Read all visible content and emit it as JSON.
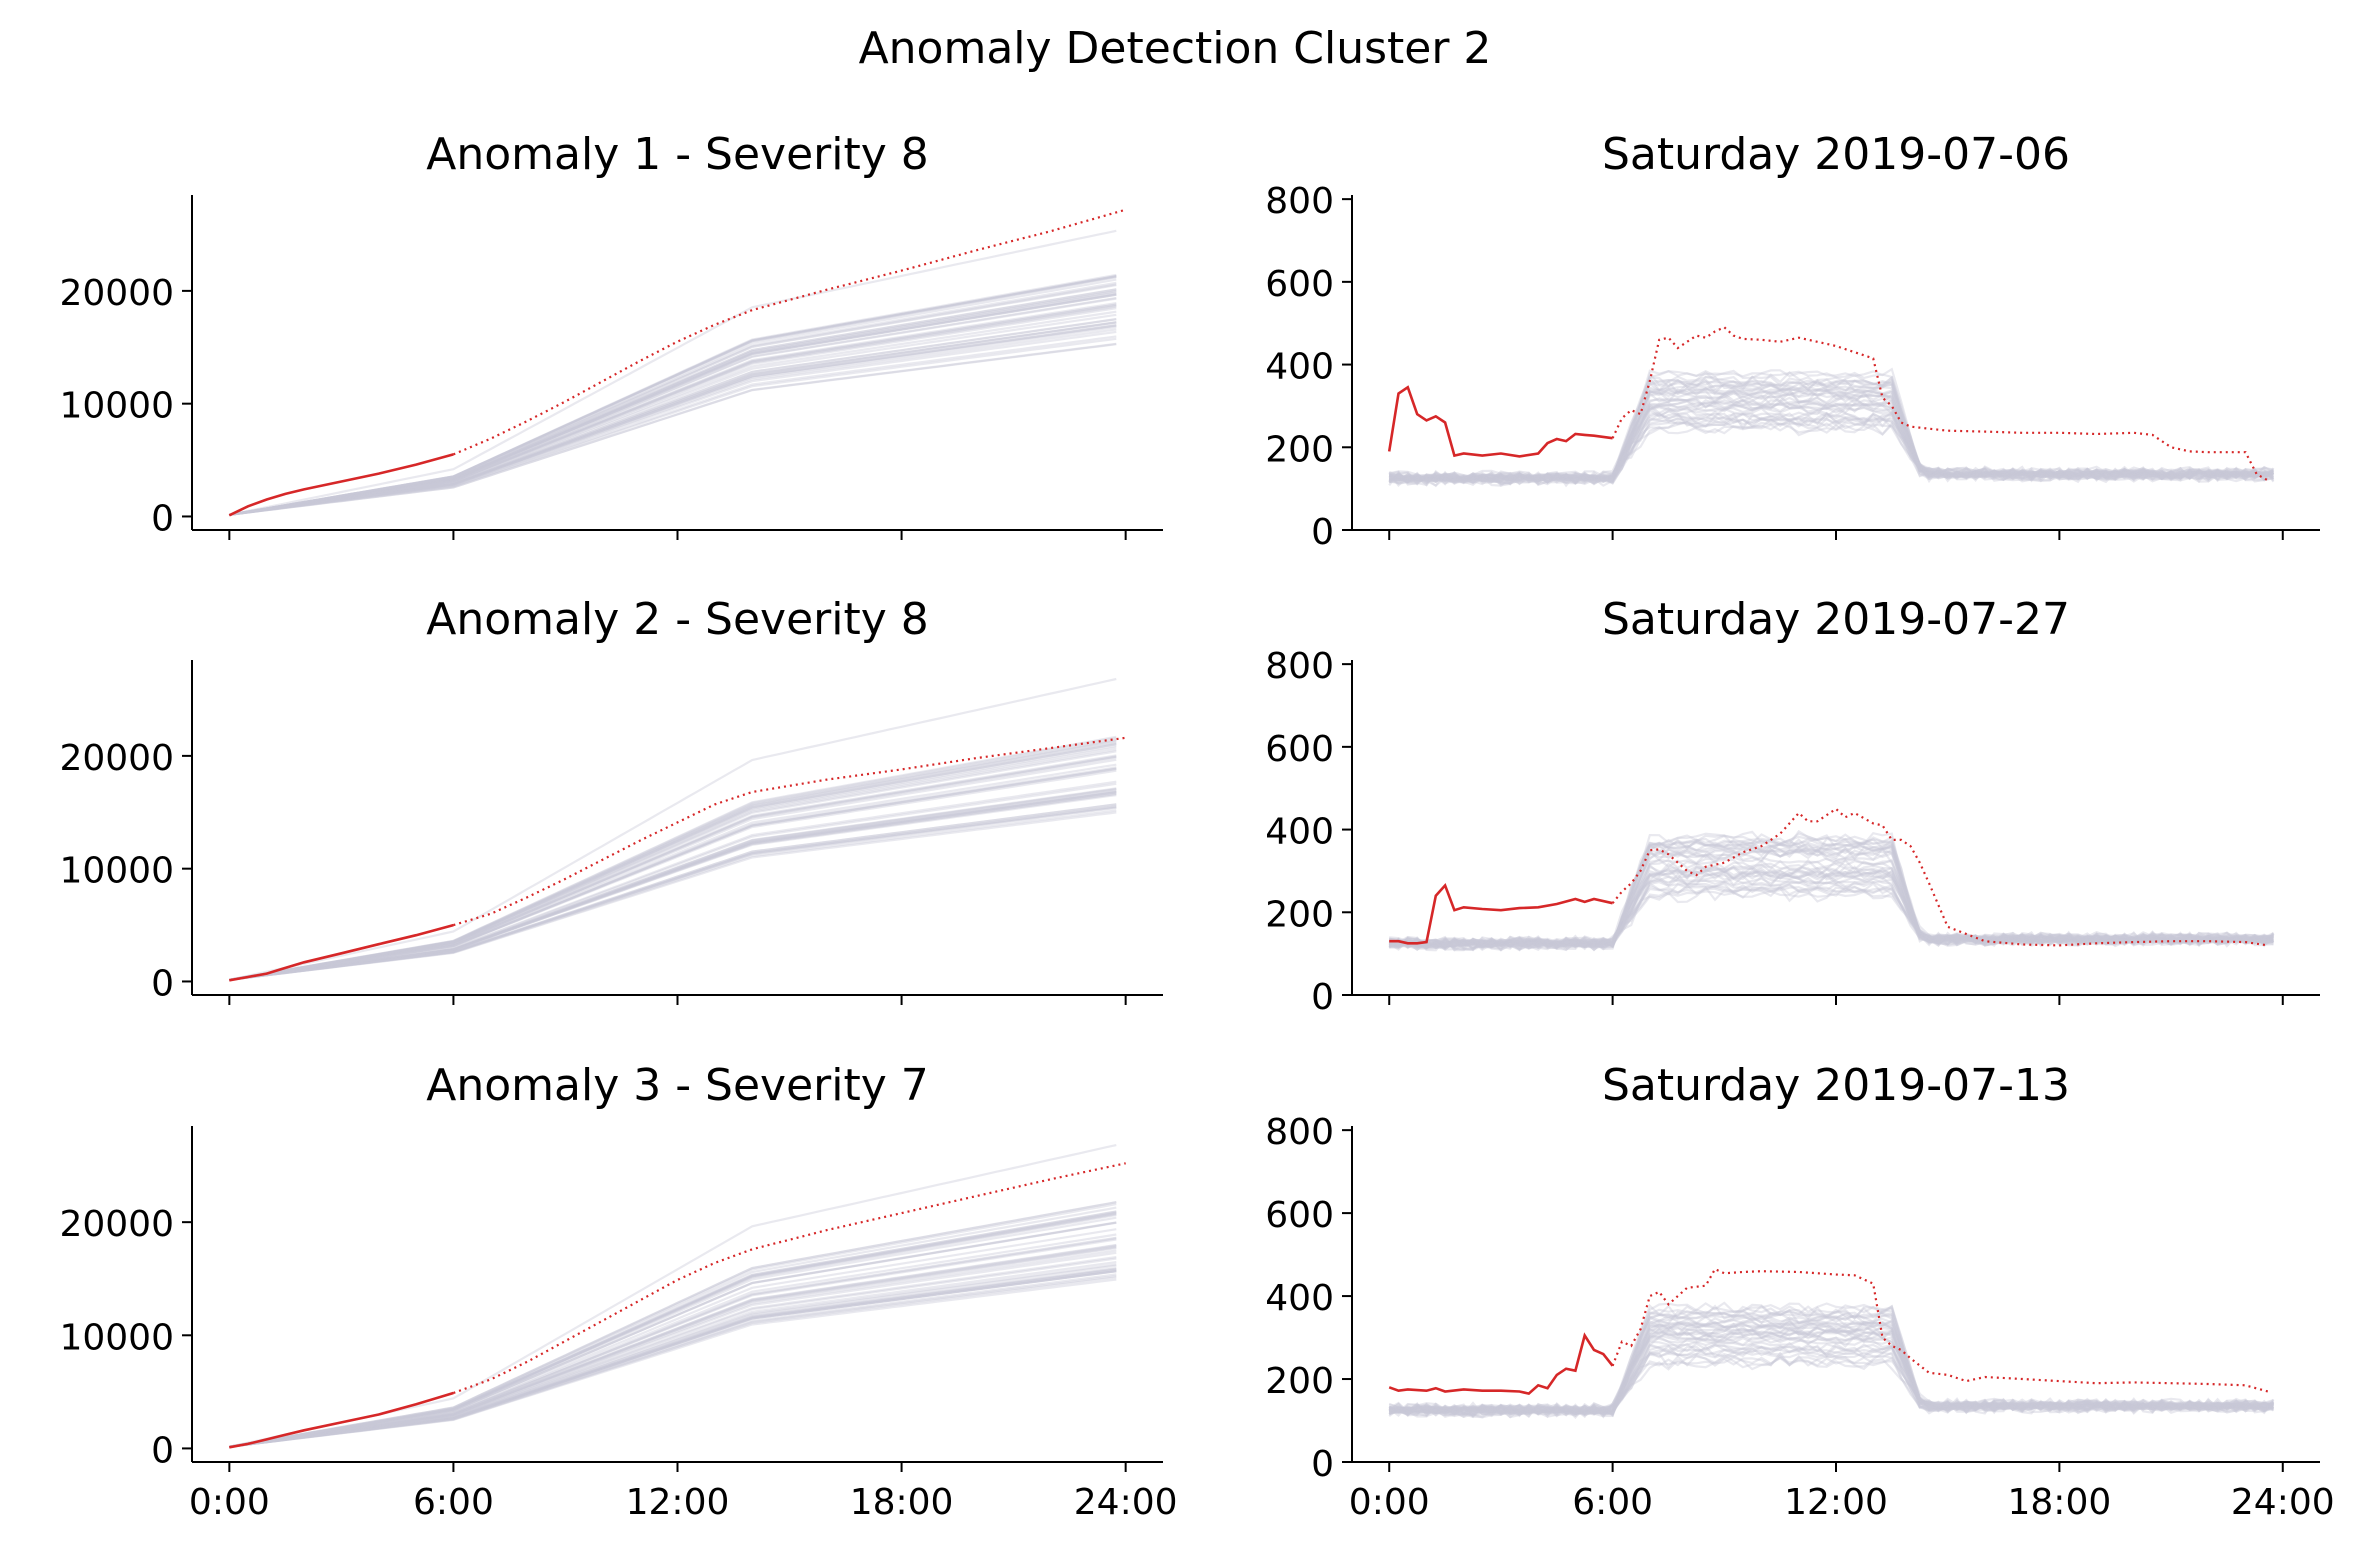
{
  "figure": {
    "title": "Anomaly Detection Cluster 2"
  },
  "colors": {
    "anomaly": "#d62728",
    "background_days": "#c9c9d6"
  },
  "chart_data": [
    {
      "type": "line",
      "panel": "cumulative-1",
      "title": "Anomaly 1 - Severity 8",
      "xlabel": "",
      "ylabel": "",
      "xlim": [
        -1,
        25
      ],
      "ylim": [
        -1200,
        28500
      ],
      "xticks": [
        "0:00",
        "6:00",
        "12:00",
        "18:00",
        "24:00"
      ],
      "yticks": [
        0,
        10000,
        20000
      ],
      "background_envelope": {
        "low_end": 15000,
        "high_end": 22000,
        "outlier_end": 25500
      },
      "anomaly": {
        "solid": {
          "x": [
            0,
            0.5,
            1,
            1.5,
            2,
            3,
            4,
            5,
            6
          ],
          "y": [
            100,
            900,
            1500,
            2000,
            2400,
            3100,
            3800,
            4600,
            5500
          ]
        },
        "dotted": {
          "x": [
            6,
            7,
            8,
            9,
            10,
            11,
            12,
            13,
            14,
            16,
            18,
            20,
            22,
            24
          ],
          "y": [
            5500,
            6900,
            8500,
            10200,
            12000,
            13800,
            15500,
            17000,
            18300,
            20100,
            21800,
            23600,
            25300,
            27200
          ]
        }
      }
    },
    {
      "type": "line",
      "panel": "daily-1",
      "title": "Saturday 2019-07-06",
      "xlabel": "",
      "ylabel": "",
      "xlim": [
        -1,
        25
      ],
      "ylim": [
        0,
        810
      ],
      "xticks": [
        "0:00",
        "6:00",
        "12:00",
        "18:00",
        "24:00"
      ],
      "yticks": [
        0,
        200,
        400,
        600,
        800
      ],
      "anomaly": {
        "solid": {
          "x": [
            0,
            0.25,
            0.5,
            0.75,
            1,
            1.25,
            1.5,
            1.75,
            2,
            2.5,
            3,
            3.5,
            4,
            4.25,
            4.5,
            4.75,
            5,
            5.25,
            5.5,
            6
          ],
          "y": [
            190,
            330,
            345,
            280,
            265,
            275,
            260,
            180,
            185,
            180,
            185,
            178,
            185,
            210,
            220,
            215,
            232,
            230,
            228,
            222
          ]
        },
        "dotted": {
          "x": [
            6,
            6.25,
            6.5,
            6.75,
            7,
            7.25,
            7.5,
            7.75,
            8,
            8.25,
            8.5,
            8.75,
            9,
            9.25,
            9.5,
            10,
            10.5,
            11,
            11.5,
            12,
            12.5,
            13,
            13.25,
            13.5,
            13.75,
            14,
            14.5,
            15,
            16,
            17,
            18,
            19,
            20,
            20.5,
            21,
            21.5,
            22,
            23,
            23.3,
            23.6
          ],
          "y": [
            222,
            270,
            290,
            280,
            360,
            460,
            465,
            440,
            455,
            470,
            465,
            480,
            490,
            470,
            462,
            460,
            455,
            465,
            455,
            445,
            430,
            415,
            320,
            300,
            260,
            250,
            245,
            240,
            238,
            235,
            235,
            232,
            235,
            230,
            200,
            190,
            188,
            188,
            135,
            120
          ]
        }
      }
    },
    {
      "type": "line",
      "panel": "cumulative-2",
      "title": "Anomaly 2 - Severity 8",
      "xlabel": "",
      "ylabel": "",
      "xlim": [
        -1,
        25
      ],
      "ylim": [
        -1200,
        28500
      ],
      "xticks": [
        "0:00",
        "6:00",
        "12:00",
        "18:00",
        "24:00"
      ],
      "yticks": [
        0,
        10000,
        20000
      ],
      "background_envelope": {
        "low_end": 15000,
        "high_end": 22000,
        "outlier_end": 27000
      },
      "anomaly": {
        "solid": {
          "x": [
            0,
            0.5,
            1,
            1.5,
            2,
            3,
            4,
            5,
            6
          ],
          "y": [
            100,
            400,
            700,
            1200,
            1700,
            2500,
            3300,
            4100,
            5000
          ]
        },
        "dotted": {
          "x": [
            6,
            7,
            8,
            9,
            10,
            11,
            12,
            13,
            14,
            16,
            18,
            20,
            22,
            24
          ],
          "y": [
            5000,
            6000,
            7500,
            9100,
            10800,
            12500,
            14100,
            15700,
            16800,
            17900,
            18800,
            19800,
            20700,
            21600
          ]
        }
      }
    },
    {
      "type": "line",
      "panel": "daily-2",
      "title": "Saturday 2019-07-27",
      "xlabel": "",
      "ylabel": "",
      "xlim": [
        -1,
        25
      ],
      "ylim": [
        0,
        810
      ],
      "xticks": [
        "0:00",
        "6:00",
        "12:00",
        "18:00",
        "24:00"
      ],
      "yticks": [
        0,
        200,
        400,
        600,
        800
      ],
      "anomaly": {
        "solid": {
          "x": [
            0,
            0.25,
            0.5,
            0.75,
            1,
            1.25,
            1.5,
            1.75,
            2,
            2.5,
            3,
            3.5,
            4,
            4.5,
            5,
            5.25,
            5.5,
            6
          ],
          "y": [
            130,
            130,
            125,
            125,
            128,
            240,
            265,
            205,
            212,
            208,
            205,
            210,
            212,
            220,
            232,
            225,
            232,
            222
          ]
        },
        "dotted": {
          "x": [
            6,
            6.25,
            6.5,
            6.75,
            7,
            7.25,
            7.5,
            8,
            8.25,
            8.5,
            9,
            9.5,
            10,
            10.5,
            11,
            11.25,
            11.5,
            12,
            12.25,
            12.5,
            13,
            13.25,
            13.5,
            13.75,
            14,
            14.25,
            14.5,
            15,
            16,
            17,
            18,
            19,
            20,
            21,
            22,
            23,
            23.6
          ],
          "y": [
            222,
            250,
            270,
            300,
            350,
            352,
            340,
            300,
            290,
            310,
            320,
            345,
            360,
            390,
            440,
            420,
            420,
            450,
            430,
            440,
            415,
            410,
            375,
            375,
            360,
            320,
            270,
            165,
            130,
            122,
            120,
            125,
            128,
            130,
            130,
            128,
            120
          ]
        }
      }
    },
    {
      "type": "line",
      "panel": "cumulative-3",
      "title": "Anomaly 3 - Severity 7",
      "xlabel": "",
      "ylabel": "",
      "xlim": [
        -1,
        25
      ],
      "ylim": [
        -1200,
        28500
      ],
      "xticks": [
        "0:00",
        "6:00",
        "12:00",
        "18:00",
        "24:00"
      ],
      "yticks": [
        0,
        10000,
        20000
      ],
      "background_envelope": {
        "low_end": 15000,
        "high_end": 22000,
        "outlier_end": 27000
      },
      "anomaly": {
        "solid": {
          "x": [
            0,
            0.5,
            1,
            1.5,
            2,
            3,
            4,
            5,
            6
          ],
          "y": [
            100,
            400,
            800,
            1200,
            1600,
            2300,
            3000,
            3900,
            4900
          ]
        },
        "dotted": {
          "x": [
            6,
            7,
            8,
            9,
            10,
            11,
            12,
            13,
            14,
            16,
            18,
            20,
            22,
            24
          ],
          "y": [
            4900,
            6100,
            7700,
            9500,
            11300,
            13100,
            14900,
            16400,
            17600,
            19300,
            20800,
            22300,
            23800,
            25200
          ]
        }
      }
    },
    {
      "type": "line",
      "panel": "daily-3",
      "title": "Saturday 2019-07-13",
      "xlabel": "",
      "ylabel": "",
      "xlim": [
        -1,
        25
      ],
      "ylim": [
        0,
        810
      ],
      "xticks": [
        "0:00",
        "6:00",
        "12:00",
        "18:00",
        "24:00"
      ],
      "yticks": [
        0,
        200,
        400,
        600,
        800
      ],
      "anomaly": {
        "solid": {
          "x": [
            0,
            0.25,
            0.5,
            1,
            1.25,
            1.5,
            2,
            2.5,
            3,
            3.5,
            3.75,
            4,
            4.25,
            4.5,
            4.75,
            5,
            5.25,
            5.5,
            5.75,
            6
          ],
          "y": [
            180,
            172,
            175,
            172,
            178,
            170,
            175,
            172,
            172,
            170,
            165,
            185,
            178,
            210,
            225,
            220,
            305,
            270,
            260,
            232
          ]
        },
        "dotted": {
          "x": [
            6,
            6.25,
            6.5,
            6.75,
            7,
            7.25,
            7.5,
            7.75,
            8,
            8.5,
            8.75,
            9,
            9.5,
            10,
            11,
            12,
            12.5,
            13,
            13.25,
            13.5,
            13.75,
            14,
            14.5,
            15,
            15.5,
            16,
            17,
            18,
            19,
            20,
            21,
            22,
            23,
            23.6
          ],
          "y": [
            232,
            290,
            280,
            320,
            400,
            410,
            380,
            400,
            420,
            425,
            465,
            455,
            458,
            460,
            458,
            452,
            450,
            430,
            300,
            280,
            270,
            250,
            215,
            210,
            195,
            205,
            200,
            195,
            190,
            192,
            190,
            188,
            185,
            170
          ]
        }
      }
    }
  ]
}
